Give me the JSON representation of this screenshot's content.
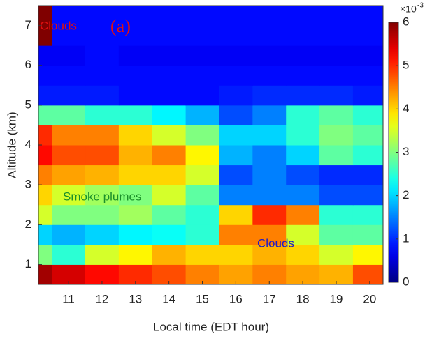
{
  "chart_data": {
    "type": "heatmap",
    "xlabel": "Local time (EDT hour)",
    "ylabel": "Altitude (km)",
    "xbins": [
      10.1,
      10.5,
      11.5,
      12.5,
      13.5,
      14.5,
      15.5,
      16.5,
      17.5,
      18.5,
      19.5,
      20.4
    ],
    "ybins": [
      0.5,
      1,
      1.5,
      2,
      2.5,
      3,
      3.5,
      4,
      4.5,
      5,
      5.5,
      6,
      6.5,
      7,
      7.5
    ],
    "z": [
      [
        5.8,
        5.5,
        5.2,
        5.0,
        4.8,
        4.5,
        4.3,
        4.5,
        4.3,
        4.2,
        4.8
      ],
      [
        3.0,
        2.5,
        3.5,
        3.8,
        4.2,
        4.0,
        4.0,
        4.2,
        4.0,
        3.5,
        3.8
      ],
      [
        2.0,
        1.8,
        2.0,
        2.2,
        2.3,
        2.5,
        4.5,
        4.5,
        3.5,
        2.8,
        2.8
      ],
      [
        3.5,
        3.0,
        3.0,
        3.2,
        2.8,
        2.5,
        4.0,
        5.0,
        4.5,
        2.5,
        2.5
      ],
      [
        4.0,
        3.5,
        3.2,
        3.0,
        3.5,
        2.8,
        1.5,
        1.5,
        1.5,
        1.2,
        1.2
      ],
      [
        4.5,
        4.3,
        4.2,
        4.0,
        4.0,
        3.5,
        1.2,
        1.5,
        1.2,
        1.0,
        1.0
      ],
      [
        5.2,
        4.8,
        4.8,
        4.2,
        4.5,
        3.8,
        1.8,
        1.5,
        2.0,
        2.8,
        2.5
      ],
      [
        5.0,
        4.5,
        4.5,
        4.0,
        3.5,
        3.0,
        2.0,
        2.0,
        2.5,
        3.0,
        2.8
      ],
      [
        2.8,
        2.8,
        2.5,
        2.5,
        2.2,
        1.8,
        1.2,
        1.5,
        2.5,
        2.8,
        2.5
      ],
      [
        0.9,
        0.9,
        0.9,
        0.8,
        0.8,
        0.8,
        0.9,
        1.0,
        1.0,
        1.0,
        0.9
      ],
      [
        0.8,
        0.8,
        0.8,
        0.8,
        0.8,
        0.8,
        0.8,
        0.8,
        0.8,
        0.8,
        0.8
      ],
      [
        0.7,
        0.7,
        0.8,
        0.7,
        0.7,
        0.7,
        0.7,
        0.7,
        0.7,
        0.7,
        0.7
      ],
      [
        6,
        0.8,
        0.8,
        0.8,
        0.8,
        0.8,
        0.8,
        0.8,
        0.8,
        0.8,
        0.8
      ],
      [
        6,
        0.8,
        0.8,
        0.8,
        0.8,
        0.8,
        0.8,
        0.8,
        0.8,
        0.8,
        0.8
      ]
    ],
    "xlim": [
      10.1,
      20.4
    ],
    "ylim": [
      0.5,
      7.5
    ],
    "xticks": [
      11,
      12,
      13,
      14,
      15,
      16,
      17,
      18,
      19,
      20
    ],
    "yticks": [
      1,
      2,
      3,
      4,
      5,
      6,
      7
    ],
    "colormap": "jet",
    "clim": [
      0,
      6
    ],
    "cticks": [
      0,
      1,
      2,
      3,
      4,
      5,
      6
    ],
    "colorbar_multiplier": "×10",
    "colorbar_exponent": "-3",
    "annotations": [
      {
        "text": "Clouds",
        "color": "#e01010"
      },
      {
        "text": "(a)",
        "color": "#e01010"
      },
      {
        "text": "Smoke plumes",
        "color": "#1a8f2a"
      },
      {
        "text": "Clouds",
        "color": "#1a1acc"
      }
    ]
  }
}
